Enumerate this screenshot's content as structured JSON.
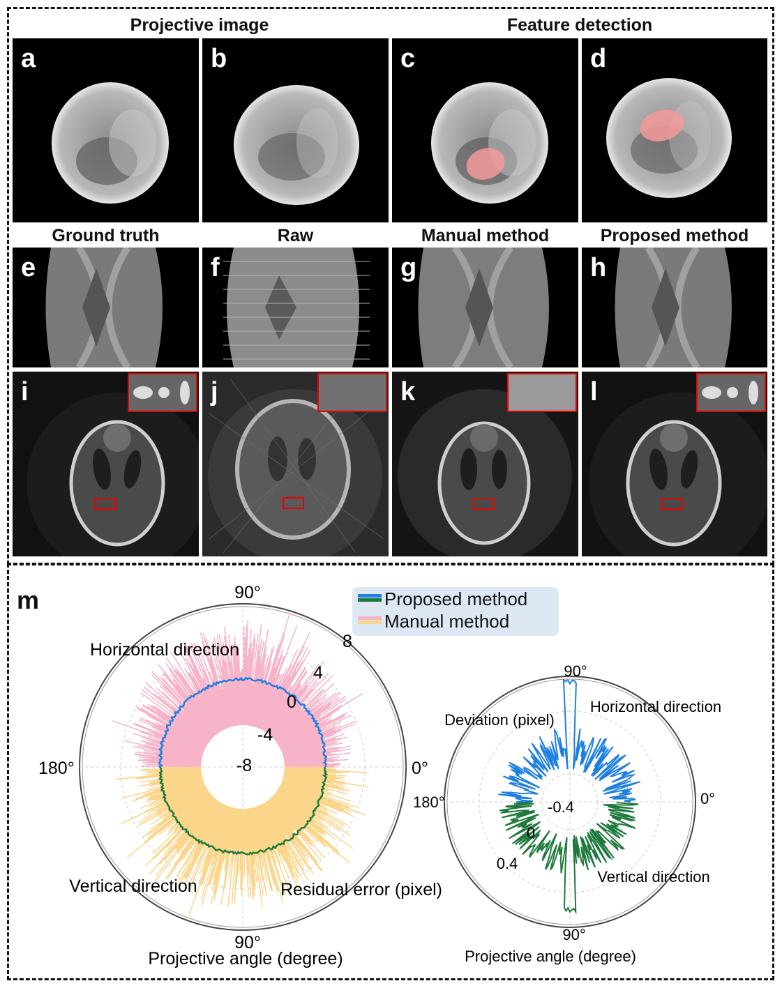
{
  "top_headers": {
    "projective": "Projective image",
    "feature": "Feature detection"
  },
  "row2_headers": [
    "Ground truth",
    "Raw",
    "Manual method",
    "Proposed method"
  ],
  "panel_letters": [
    "a",
    "b",
    "c",
    "d",
    "e",
    "f",
    "g",
    "h",
    "i",
    "j",
    "k",
    "l"
  ],
  "panel_m": {
    "letter": "m",
    "legend": {
      "proposed": "Proposed method",
      "manual": "Manual method"
    },
    "colors": {
      "proposed_h": "#1f7fe0",
      "proposed_v": "#1e7a3c",
      "manual_h": "#f7b3c8",
      "manual_v": "#fbd58a"
    },
    "left_plot": {
      "angle_labels": {
        "top": "90°",
        "left": "180°",
        "right": "0°",
        "bottom": "90°"
      },
      "radial_labels": [
        "8",
        "4",
        "0",
        "-4",
        "-8"
      ],
      "text_horizontal": "Horizontal direction",
      "text_vertical": "Vertical direction",
      "text_residual": "Residual error (pixel)",
      "xlabel": "Projective angle (degree)"
    },
    "right_plot": {
      "angle_labels": {
        "top": "90°",
        "left": "180°",
        "right": "0°",
        "bottom": "90°"
      },
      "radial_labels": [
        "-0.4",
        "0",
        "0.4"
      ],
      "text_horizontal": "Horizontal direction",
      "text_vertical": "Vertical direction",
      "text_deviation": "Deviation (pixel)",
      "xlabel": "Projective angle (degree)"
    }
  }
}
